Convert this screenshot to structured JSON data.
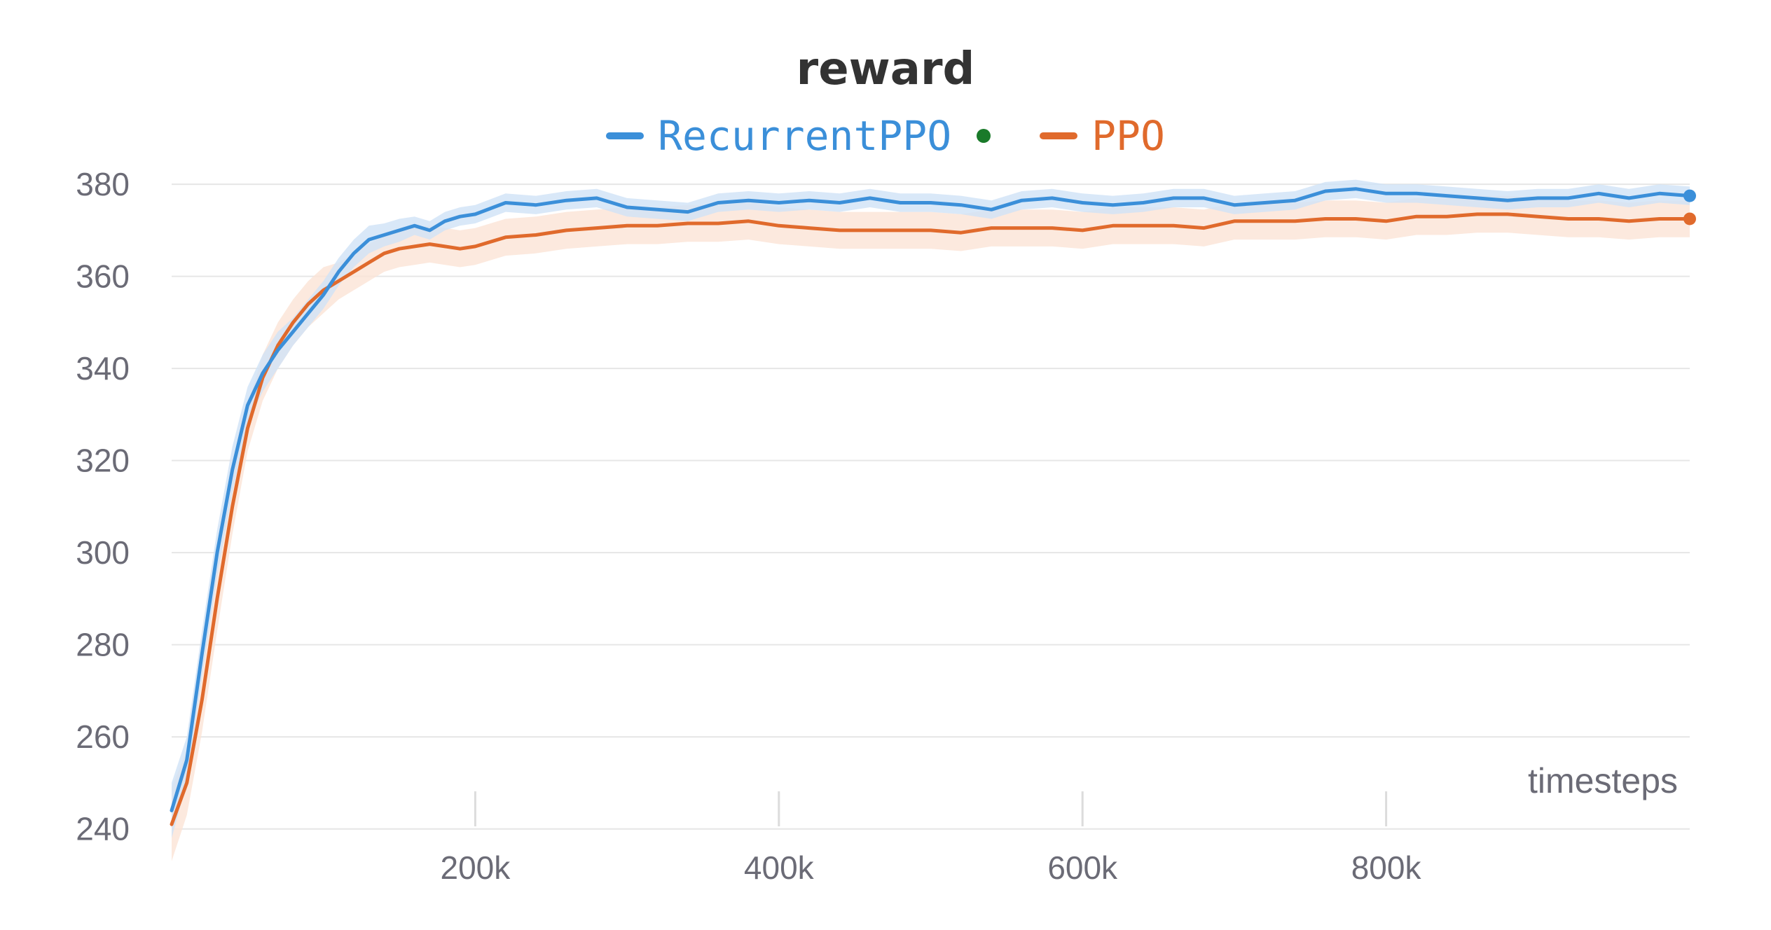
{
  "chart_data": {
    "type": "line",
    "title": "reward",
    "xlabel": "timesteps",
    "ylabel": "",
    "xlim": [
      0,
      1000000
    ],
    "ylim": [
      236,
      382
    ],
    "y_ticks": [
      240,
      260,
      280,
      300,
      320,
      340,
      360,
      380
    ],
    "x_ticks": [
      200000,
      400000,
      600000,
      800000
    ],
    "x_tick_labels": [
      "200k",
      "400k",
      "600k",
      "800k"
    ],
    "grid": true,
    "legend_position": "top-center",
    "series": [
      {
        "name": "RecurrentPPO",
        "color": "#3b8fd9",
        "band_color": "#cfe2f6",
        "has_status_dot": true,
        "status_dot_color": "#1a7a2a",
        "x": [
          0,
          10000,
          20000,
          30000,
          40000,
          50000,
          60000,
          70000,
          80000,
          90000,
          100000,
          110000,
          120000,
          130000,
          140000,
          150000,
          160000,
          170000,
          180000,
          190000,
          200000,
          220000,
          240000,
          260000,
          280000,
          300000,
          320000,
          340000,
          360000,
          380000,
          400000,
          420000,
          440000,
          460000,
          480000,
          500000,
          520000,
          540000,
          560000,
          580000,
          600000,
          620000,
          640000,
          660000,
          680000,
          700000,
          720000,
          740000,
          760000,
          780000,
          800000,
          820000,
          840000,
          860000,
          880000,
          900000,
          920000,
          940000,
          960000,
          980000,
          1000000
        ],
        "values": [
          244,
          255,
          278,
          300,
          318,
          332,
          339,
          344,
          348,
          352,
          356,
          361,
          365,
          368,
          369,
          370,
          371,
          370,
          372,
          373,
          373.5,
          376,
          375.5,
          376.5,
          377,
          375,
          374.5,
          374,
          376,
          376.5,
          376,
          376.5,
          376,
          377,
          376,
          376,
          375.5,
          374.5,
          376.5,
          377,
          376,
          375.5,
          376,
          377,
          377,
          375.5,
          376,
          376.5,
          378.5,
          379,
          378,
          378,
          377.5,
          377,
          376.5,
          377,
          377,
          378,
          377,
          378,
          377.5
        ],
        "band_halfwidth": [
          6,
          5,
          5,
          5,
          5,
          4,
          4,
          4,
          3,
          3,
          3,
          3,
          3,
          3,
          2.5,
          2.5,
          2,
          2,
          2,
          2,
          2,
          2,
          2,
          2,
          2,
          2,
          2,
          2,
          2,
          2,
          2,
          2,
          2,
          2,
          2,
          2,
          2,
          2,
          2,
          2,
          2,
          2,
          2,
          2,
          2,
          2,
          2,
          2,
          2,
          2,
          2,
          2,
          2,
          2,
          2,
          2,
          2,
          2,
          2,
          2,
          2
        ]
      },
      {
        "name": "PPO",
        "color": "#e06a2c",
        "band_color": "#fbe3d6",
        "has_status_dot": false,
        "x": [
          0,
          10000,
          20000,
          30000,
          40000,
          50000,
          60000,
          70000,
          80000,
          90000,
          100000,
          110000,
          120000,
          130000,
          140000,
          150000,
          160000,
          170000,
          180000,
          190000,
          200000,
          220000,
          240000,
          260000,
          280000,
          300000,
          320000,
          340000,
          360000,
          380000,
          400000,
          420000,
          440000,
          460000,
          480000,
          500000,
          520000,
          540000,
          560000,
          580000,
          600000,
          620000,
          640000,
          660000,
          680000,
          700000,
          720000,
          740000,
          760000,
          780000,
          800000,
          820000,
          840000,
          860000,
          880000,
          900000,
          920000,
          940000,
          960000,
          980000,
          1000000
        ],
        "values": [
          241,
          250,
          268,
          290,
          310,
          327,
          338,
          345,
          350,
          354,
          357,
          359,
          361,
          363,
          365,
          366,
          366.5,
          367,
          366.5,
          366,
          366.5,
          368.5,
          369,
          370,
          370.5,
          371,
          371,
          371.5,
          371.5,
          372,
          371,
          370.5,
          370,
          370,
          370,
          370,
          369.5,
          370.5,
          370.5,
          370.5,
          370,
          371,
          371,
          371,
          370.5,
          372,
          372,
          372,
          372.5,
          372.5,
          372,
          373,
          373,
          373.5,
          373.5,
          373,
          372.5,
          372.5,
          372,
          372.5,
          372.5
        ],
        "band_halfwidth": [
          8,
          7,
          7,
          7,
          6,
          5,
          5,
          5,
          5,
          5,
          5,
          4,
          4,
          4,
          4,
          4,
          4,
          4,
          4,
          4,
          4,
          4,
          4,
          4,
          4,
          4,
          4,
          4,
          4,
          4,
          4,
          4,
          4,
          4,
          4,
          4,
          4,
          4,
          4,
          4,
          4,
          4,
          4,
          4,
          4,
          4,
          4,
          4,
          4,
          4,
          4,
          4,
          4,
          4,
          4,
          4,
          4,
          4,
          4,
          4,
          4
        ]
      }
    ]
  }
}
